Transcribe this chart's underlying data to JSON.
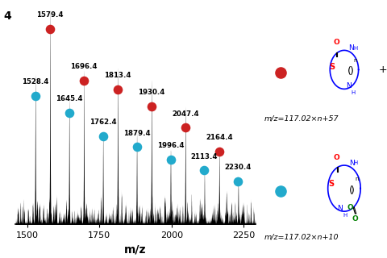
{
  "title": "4",
  "xlabel": "m/z",
  "xlim": [
    1460,
    2290
  ],
  "ylim": [
    0,
    1.0
  ],
  "background_color": "#ffffff",
  "red_peaks": [
    {
      "mz": 1579.4,
      "intensity": 0.88,
      "label": "1579.4"
    },
    {
      "mz": 1696.4,
      "intensity": 0.64,
      "label": "1696.4"
    },
    {
      "mz": 1813.4,
      "intensity": 0.6,
      "label": "1813.4"
    },
    {
      "mz": 1930.4,
      "intensity": 0.52,
      "label": "1930.4"
    },
    {
      "mz": 2047.4,
      "intensity": 0.42,
      "label": "2047.4"
    },
    {
      "mz": 2164.4,
      "intensity": 0.31,
      "label": "2164.4"
    }
  ],
  "cyan_peaks": [
    {
      "mz": 1528.4,
      "intensity": 0.57,
      "label": "1528.4"
    },
    {
      "mz": 1645.4,
      "intensity": 0.49,
      "label": "1645.4"
    },
    {
      "mz": 1762.4,
      "intensity": 0.38,
      "label": "1762.4"
    },
    {
      "mz": 1879.4,
      "intensity": 0.33,
      "label": "1879.4"
    },
    {
      "mz": 1996.4,
      "intensity": 0.27,
      "label": "1996.4"
    },
    {
      "mz": 2113.4,
      "intensity": 0.22,
      "label": "2113.4"
    },
    {
      "mz": 2230.4,
      "intensity": 0.17,
      "label": "2230.4"
    }
  ],
  "xticks": [
    1500,
    1750,
    2000,
    2250
  ],
  "red_color": "#cc2222",
  "cyan_color": "#22aacc",
  "dot_size": 70,
  "label_fontsize": 6.2,
  "formula1": "m/z=117.02×n+57",
  "formula2": "m/z=117.02×n+10"
}
